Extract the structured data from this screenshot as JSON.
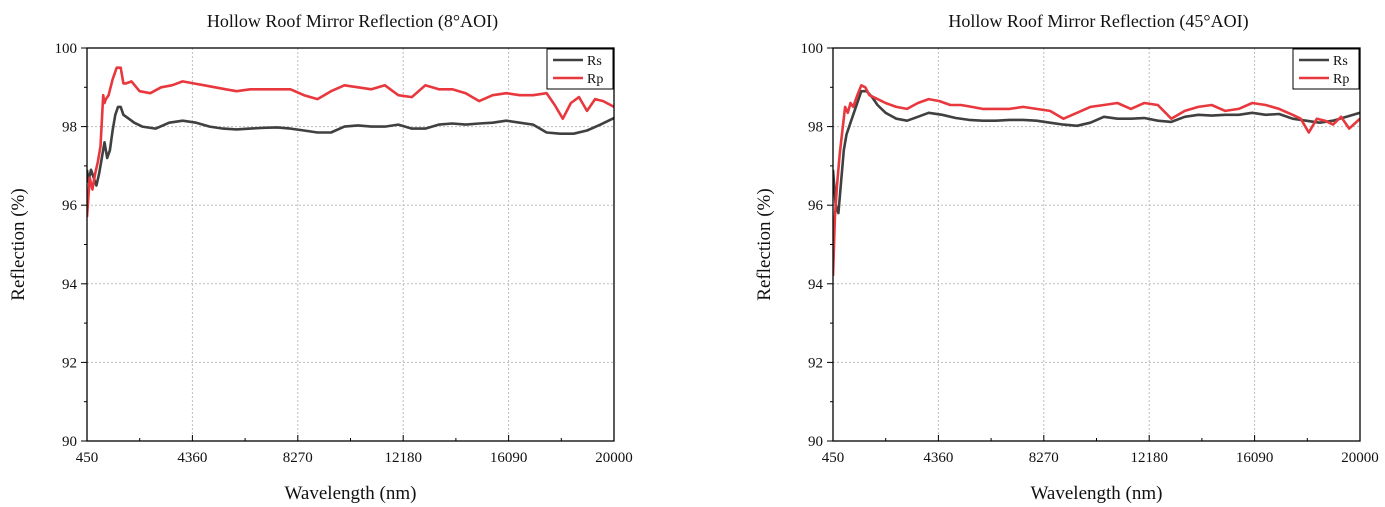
{
  "chart_data": [
    {
      "type": "line",
      "title": "Hollow Roof Mirror Reflection (8°AOI)",
      "xlabel": "Wavelength (nm)",
      "ylabel": "Reflection (%)",
      "xlim": [
        450,
        20000
      ],
      "ylim": [
        90,
        100
      ],
      "xticks": [
        450,
        4360,
        8270,
        12180,
        16090,
        20000
      ],
      "xtick_labels": [
        "450",
        "4360",
        "8270",
        "12180",
        "16090",
        "20000"
      ],
      "yticks": [
        90,
        92,
        94,
        96,
        98,
        100
      ],
      "ytick_labels": [
        "90",
        "92",
        "94",
        "96",
        "98",
        "100"
      ],
      "grid": true,
      "legend_position": "top-right",
      "series": [
        {
          "name": "Rs",
          "color": "#404040",
          "x": [
            450,
            500,
            600,
            700,
            800,
            900,
            1000,
            1100,
            1200,
            1300,
            1400,
            1500,
            1600,
            1700,
            1800,
            2000,
            2200,
            2500,
            3000,
            3500,
            4000,
            4500,
            5000,
            5500,
            6000,
            6500,
            7000,
            7500,
            8000,
            8500,
            9000,
            9500,
            10000,
            10500,
            11000,
            11500,
            12000,
            12500,
            13000,
            13500,
            14000,
            14500,
            15000,
            15500,
            16000,
            16500,
            17000,
            17500,
            18000,
            18500,
            19000,
            19500,
            20000
          ],
          "y": [
            96.9,
            96.6,
            96.9,
            96.7,
            96.5,
            96.8,
            97.2,
            97.6,
            97.2,
            97.4,
            97.9,
            98.3,
            98.5,
            98.5,
            98.3,
            98.2,
            98.1,
            98.0,
            97.95,
            98.1,
            98.15,
            98.1,
            98.0,
            97.95,
            97.93,
            97.95,
            97.97,
            97.98,
            97.95,
            97.9,
            97.85,
            97.85,
            98.0,
            98.03,
            98.0,
            98.0,
            98.05,
            97.95,
            97.95,
            98.05,
            98.08,
            98.05,
            98.08,
            98.1,
            98.15,
            98.1,
            98.05,
            97.85,
            97.82,
            97.82,
            97.9,
            98.05,
            98.22
          ]
        },
        {
          "name": "Rp",
          "color": "#e8383d",
          "x": [
            450,
            550,
            650,
            750,
            850,
            950,
            1050,
            1100,
            1150,
            1250,
            1400,
            1550,
            1700,
            1800,
            1900,
            2100,
            2400,
            2800,
            3200,
            3600,
            4000,
            4400,
            4800,
            5200,
            5600,
            6000,
            6500,
            7000,
            7500,
            8000,
            8500,
            9000,
            9500,
            10000,
            10500,
            11000,
            11500,
            12000,
            12500,
            13000,
            13500,
            14000,
            14500,
            15000,
            15500,
            16000,
            16500,
            17000,
            17500,
            17800,
            18100,
            18400,
            18700,
            19000,
            19300,
            19600,
            20000
          ],
          "y": [
            95.7,
            96.7,
            96.4,
            96.8,
            97.1,
            97.5,
            98.8,
            98.6,
            98.7,
            98.8,
            99.2,
            99.5,
            99.5,
            99.1,
            99.1,
            99.15,
            98.9,
            98.85,
            99.0,
            99.05,
            99.15,
            99.1,
            99.05,
            99.0,
            98.95,
            98.9,
            98.95,
            98.95,
            98.95,
            98.95,
            98.8,
            98.7,
            98.9,
            99.05,
            99.0,
            98.95,
            99.05,
            98.8,
            98.75,
            99.05,
            98.95,
            98.95,
            98.85,
            98.65,
            98.8,
            98.85,
            98.8,
            98.8,
            98.85,
            98.55,
            98.2,
            98.6,
            98.75,
            98.4,
            98.7,
            98.65,
            98.5
          ]
        }
      ]
    },
    {
      "type": "line",
      "title": "Hollow Roof Mirror Reflection (45°AOI)",
      "xlabel": "Wavelength (nm)",
      "ylabel": "Reflection (%)",
      "xlim": [
        450,
        20000
      ],
      "ylim": [
        90,
        100
      ],
      "xticks": [
        450,
        4360,
        8270,
        12180,
        16090,
        20000
      ],
      "xtick_labels": [
        "450",
        "4360",
        "8270",
        "12180",
        "16090",
        "20000"
      ],
      "yticks": [
        90,
        92,
        94,
        96,
        98,
        100
      ],
      "ytick_labels": [
        "90",
        "92",
        "94",
        "96",
        "98",
        "100"
      ],
      "grid": true,
      "legend_position": "top-right",
      "series": [
        {
          "name": "Rs",
          "color": "#404040",
          "x": [
            450,
            550,
            650,
            750,
            850,
            950,
            1100,
            1300,
            1500,
            1700,
            1900,
            2100,
            2400,
            2800,
            3200,
            3600,
            4000,
            4500,
            5000,
            5500,
            6000,
            6500,
            7000,
            7500,
            8000,
            8500,
            9000,
            9500,
            10000,
            10500,
            11000,
            11500,
            12000,
            12500,
            13000,
            13500,
            14000,
            14500,
            15000,
            15500,
            16000,
            16500,
            17000,
            17500,
            18000,
            18500,
            19000,
            19500,
            20000
          ],
          "y": [
            96.9,
            96.0,
            95.8,
            96.6,
            97.4,
            97.8,
            98.1,
            98.5,
            98.9,
            98.9,
            98.75,
            98.55,
            98.35,
            98.2,
            98.15,
            98.25,
            98.35,
            98.3,
            98.22,
            98.17,
            98.15,
            98.15,
            98.17,
            98.17,
            98.15,
            98.1,
            98.05,
            98.02,
            98.1,
            98.25,
            98.2,
            98.2,
            98.22,
            98.15,
            98.12,
            98.25,
            98.3,
            98.28,
            98.3,
            98.3,
            98.35,
            98.3,
            98.32,
            98.2,
            98.15,
            98.1,
            98.15,
            98.25,
            98.35
          ]
        },
        {
          "name": "Rp",
          "color": "#e8383d",
          "x": [
            450,
            520,
            600,
            700,
            800,
            900,
            1000,
            1100,
            1200,
            1350,
            1500,
            1650,
            1800,
            1950,
            2100,
            2400,
            2800,
            3200,
            3600,
            4000,
            4400,
            4800,
            5200,
            5600,
            6000,
            6500,
            7000,
            7500,
            8000,
            8500,
            9000,
            9500,
            10000,
            10500,
            11000,
            11500,
            12000,
            12500,
            13000,
            13500,
            14000,
            14500,
            15000,
            15500,
            16000,
            16500,
            17000,
            17500,
            17800,
            18100,
            18400,
            18700,
            19000,
            19300,
            19600,
            20000
          ],
          "y": [
            94.2,
            95.7,
            96.5,
            97.3,
            97.9,
            98.5,
            98.35,
            98.6,
            98.5,
            98.8,
            99.05,
            99.0,
            98.8,
            98.75,
            98.7,
            98.6,
            98.5,
            98.45,
            98.6,
            98.7,
            98.65,
            98.55,
            98.55,
            98.5,
            98.45,
            98.45,
            98.45,
            98.5,
            98.45,
            98.4,
            98.2,
            98.35,
            98.5,
            98.55,
            98.6,
            98.45,
            98.6,
            98.55,
            98.2,
            98.4,
            98.5,
            98.55,
            98.4,
            98.45,
            98.6,
            98.55,
            98.45,
            98.3,
            98.2,
            97.85,
            98.2,
            98.15,
            98.05,
            98.25,
            97.95,
            98.2
          ]
        }
      ]
    }
  ]
}
